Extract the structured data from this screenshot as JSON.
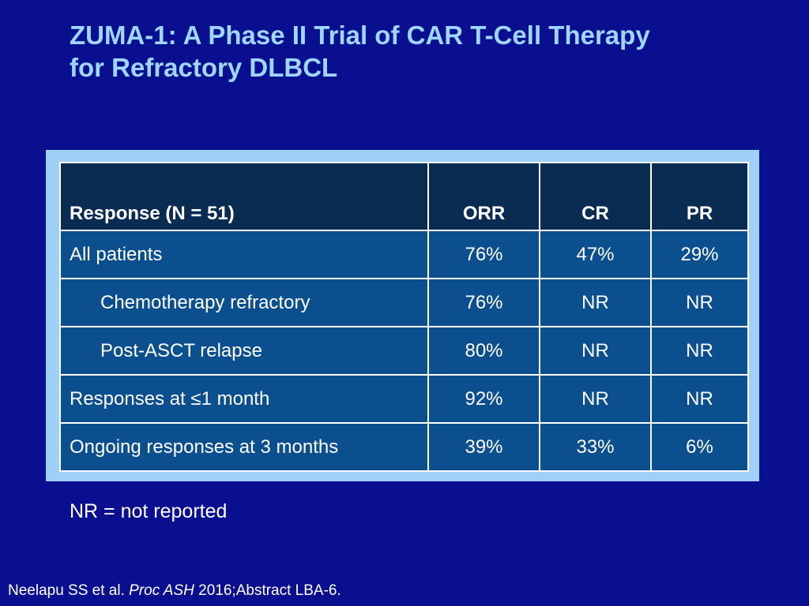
{
  "slide": {
    "title_line1": "ZUMA-1: A Phase II Trial of CAR T-Cell Therapy",
    "title_line2": "for Refractory DLBCL"
  },
  "table": {
    "headers": [
      "Response (N = 51)",
      "ORR",
      "CR",
      "PR"
    ],
    "rows": [
      {
        "label": "All patients",
        "orr": "76%",
        "cr": "47%",
        "pr": "29%"
      },
      {
        "label": "Chemotherapy refractory",
        "orr": "76%",
        "cr": "NR",
        "pr": "NR"
      },
      {
        "label": "Post-ASCT relapse",
        "orr": "80%",
        "cr": "NR",
        "pr": "NR"
      },
      {
        "label": "Responses at ≤1 month",
        "orr": "92%",
        "cr": "NR",
        "pr": "NR"
      },
      {
        "label": "Ongoing responses at 3 months",
        "orr": "39%",
        "cr": "33%",
        "pr": "6%"
      }
    ]
  },
  "footnote": "NR = not reported",
  "citation": {
    "authors": "Neelapu SS et al. ",
    "journal": "Proc ASH",
    "rest": " 2016;Abstract LBA-6."
  },
  "colors": {
    "background": "#0a0f8f",
    "title": "#9fd6ff",
    "table_frame": "#9fd0f5",
    "header_fill": "#0a2c52",
    "cell_fill": "#0b4f8e"
  }
}
